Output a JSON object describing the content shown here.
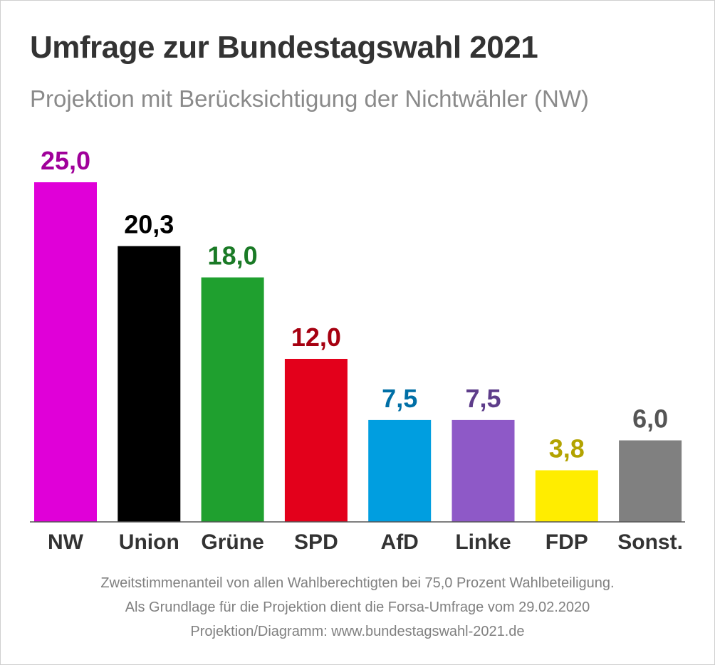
{
  "chart_data": {
    "type": "bar",
    "title": "Umfrage zur Bundestagswahl 2021",
    "subtitle": "Projektion mit Berücksichtigung der Nichtwähler (NW)",
    "categories": [
      "NW",
      "Union",
      "Grüne",
      "SPD",
      "AfD",
      "Linke",
      "FDP",
      "Sonst."
    ],
    "values": [
      25.0,
      20.3,
      18.0,
      12.0,
      7.5,
      7.5,
      3.8,
      6.0
    ],
    "value_labels": [
      "25,0",
      "20,3",
      "18,0",
      "12,0",
      "7,5",
      "7,5",
      "3,8",
      "6,0"
    ],
    "bar_colors": [
      "#e000d8",
      "#000000",
      "#1fa02f",
      "#e3001b",
      "#009ee0",
      "#8e59c7",
      "#ffed00",
      "#808080"
    ],
    "label_colors": [
      "#a0009a",
      "#000000",
      "#1a7a26",
      "#a60010",
      "#006fa6",
      "#5e3d8a",
      "#b3a300",
      "#555555"
    ],
    "xlabel": "",
    "ylabel": "",
    "ylim": [
      0,
      25
    ],
    "grid": false,
    "legend": "none"
  },
  "footer": {
    "line1": "Zweitstimmenanteil von allen Wahlberechtigten bei 75,0 Prozent Wahlbeteiligung.",
    "line2": "Als Grundlage für die Projektion dient die Forsa-Umfrage vom 29.02.2020",
    "line3": "Projektion/Diagramm: www.bundestagswahl-2021.de"
  }
}
